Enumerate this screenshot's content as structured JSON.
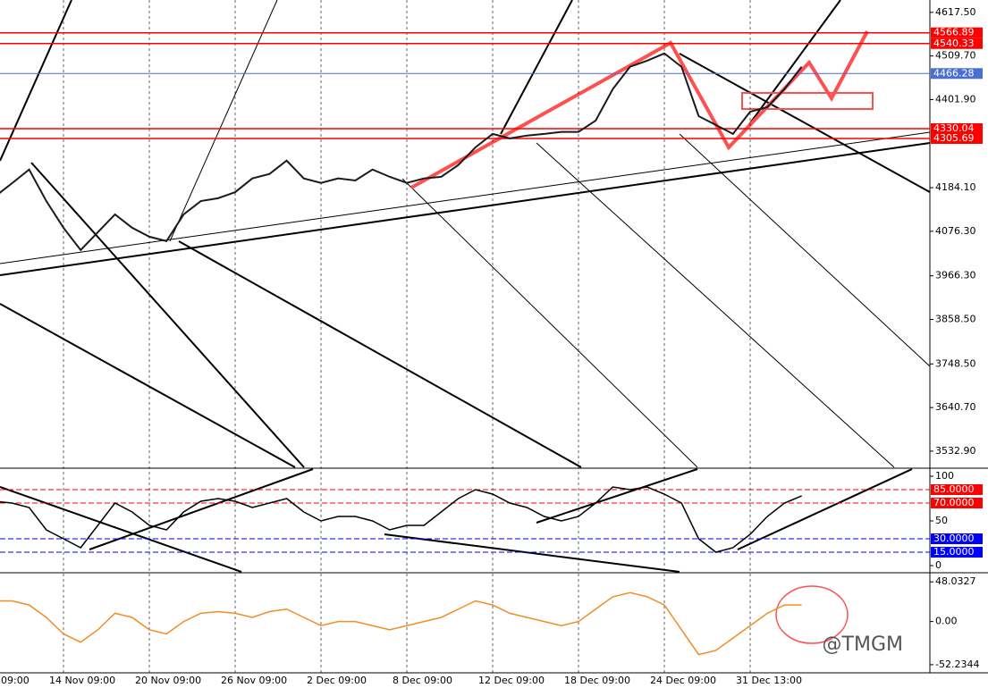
{
  "chart_data": [
    {
      "type": "line",
      "categories": [
        "09:00",
        null,
        null,
        null,
        null,
        "14 Nov 09:00",
        null,
        null,
        null,
        null,
        "20 Nov 09:00",
        null,
        null,
        null,
        null,
        "26 Nov 09:00",
        null,
        null,
        null,
        null,
        "2 Dec 09:00",
        null,
        null,
        null,
        null,
        "8 Dec 09:00",
        null,
        null,
        null,
        null,
        "12 Dec 09:00",
        null,
        null,
        null,
        null,
        "18 Dec 09:00",
        null,
        null,
        null,
        null,
        "24 Dec 09:00",
        null,
        null,
        null,
        null,
        "31 Dec 13:00",
        null,
        null,
        null
      ],
      "series": [
        {
          "color": "#1a1a1a",
          "values": [
            4140,
            4162,
            4195,
            4229,
            4151,
            4085,
            4030,
            4074,
            4118,
            4085,
            4063,
            4052,
            4118,
            4151,
            4158,
            4173,
            4207,
            4218,
            4251,
            4207,
            4196,
            4207,
            4202,
            4229,
            4211,
            4196,
            4207,
            4211,
            4240,
            4284,
            4317,
            4306,
            4313,
            4317,
            4322,
            4322,
            4350,
            4428,
            4483,
            4498,
            4516,
            4483,
            4361,
            4339,
            4317,
            4372,
            4383,
            4428,
            4483
          ]
        }
      ],
      "ylim": [
        3493,
        4648
      ],
      "yticks": [
        {
          "value": 4617.5,
          "label": "4617.50"
        },
        {
          "value": 4509.7,
          "label": "4509.70"
        },
        {
          "value": 4401.9,
          "label": "4401.90"
        },
        {
          "value": 4184.1,
          "label": "4184.10"
        },
        {
          "value": 4076.3,
          "label": "4076.30"
        },
        {
          "value": 3966.3,
          "label": "3966.30"
        },
        {
          "value": 3858.5,
          "label": "3858.50"
        },
        {
          "value": 3748.5,
          "label": "3748.50"
        },
        {
          "value": 3640.7,
          "label": "3640.70"
        },
        {
          "value": 3532.9,
          "label": "3532.90"
        }
      ],
      "levels": [
        {
          "value": 4566.89,
          "color": "#ff0000"
        },
        {
          "value": 4540.33,
          "color": "#ff0000"
        },
        {
          "value": 4466.28,
          "color": "#4a6fd0"
        },
        {
          "value": 4330.04,
          "color": "#ff0000"
        },
        {
          "value": 4305.69,
          "color": "#ff0000"
        }
      ]
    },
    {
      "type": "line",
      "series": [
        {
          "color": "#000000",
          "values": [
            75,
            72,
            70,
            65,
            40,
            30,
            20,
            45,
            70,
            60,
            45,
            40,
            60,
            72,
            75,
            72,
            65,
            70,
            75,
            60,
            50,
            55,
            55,
            50,
            40,
            45,
            45,
            60,
            75,
            85,
            80,
            70,
            65,
            55,
            50,
            55,
            70,
            88,
            85,
            88,
            80,
            70,
            30,
            15,
            20,
            35,
            55,
            70,
            78
          ]
        }
      ],
      "ylim": [
        -7,
        108
      ],
      "yticks": [
        0,
        50,
        100
      ],
      "levels": [
        {
          "value": 85,
          "label": "85.0000",
          "color": "#ff0000"
        },
        {
          "value": 70,
          "label": "70.0000",
          "color": "#ff0000"
        },
        {
          "value": 30,
          "label": "30.0000",
          "color": "#0000ff"
        },
        {
          "value": 15,
          "label": "15.0000",
          "color": "#0000ff"
        }
      ]
    },
    {
      "type": "line",
      "series": [
        {
          "color": "#f28c28",
          "values": [
            20,
            25,
            25,
            20,
            5,
            -15,
            -25,
            -10,
            10,
            5,
            -10,
            -15,
            0,
            10,
            12,
            10,
            5,
            12,
            15,
            5,
            -5,
            0,
            0,
            -5,
            -10,
            -5,
            0,
            5,
            15,
            25,
            20,
            10,
            5,
            0,
            -5,
            0,
            15,
            30,
            35,
            30,
            20,
            -10,
            -40,
            -35,
            -20,
            -5,
            10,
            20,
            20
          ]
        }
      ],
      "ylim": [
        -61,
        58
      ],
      "yticks": [
        {
          "value": 48.0327,
          "label": "48.0327"
        },
        {
          "value": 0,
          "label": "0.00"
        },
        {
          "value": -52.2344,
          "label": "-52.2344"
        }
      ]
    }
  ],
  "watermark": "@TMGM"
}
